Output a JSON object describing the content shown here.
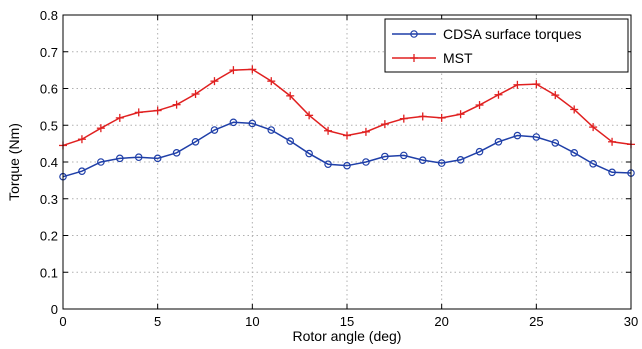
{
  "chart_data": {
    "type": "line",
    "xlabel": "Rotor angle (deg)",
    "ylabel": "Torque (Nm)",
    "xlim": [
      0,
      30
    ],
    "ylim": [
      0,
      0.8
    ],
    "x_ticks": [
      0,
      5,
      10,
      15,
      20,
      25,
      30
    ],
    "y_ticks": [
      0,
      0.1,
      0.2,
      0.3,
      0.4,
      0.5,
      0.6,
      0.7,
      0.8
    ],
    "grid": true,
    "legend_position": "top-right",
    "x": [
      0,
      1,
      2,
      3,
      4,
      5,
      6,
      7,
      8,
      9,
      10,
      11,
      12,
      13,
      14,
      15,
      16,
      17,
      18,
      19,
      20,
      21,
      22,
      23,
      24,
      25,
      26,
      27,
      28,
      29,
      30
    ],
    "series": [
      {
        "name": "CDSA surface torques",
        "color": "#1f3fa8",
        "marker": "circle",
        "values": [
          0.36,
          0.375,
          0.4,
          0.41,
          0.413,
          0.41,
          0.425,
          0.455,
          0.487,
          0.508,
          0.505,
          0.487,
          0.457,
          0.423,
          0.394,
          0.39,
          0.4,
          0.415,
          0.418,
          0.405,
          0.397,
          0.406,
          0.428,
          0.455,
          0.472,
          0.468,
          0.452,
          0.425,
          0.395,
          0.372,
          0.37
        ]
      },
      {
        "name": "MST",
        "color": "#e02020",
        "marker": "plus",
        "values": [
          0.445,
          0.462,
          0.492,
          0.52,
          0.535,
          0.54,
          0.556,
          0.585,
          0.62,
          0.65,
          0.652,
          0.62,
          0.58,
          0.527,
          0.485,
          0.472,
          0.482,
          0.503,
          0.518,
          0.524,
          0.52,
          0.53,
          0.555,
          0.583,
          0.61,
          0.612,
          0.582,
          0.543,
          0.495,
          0.455,
          0.448
        ]
      }
    ]
  }
}
